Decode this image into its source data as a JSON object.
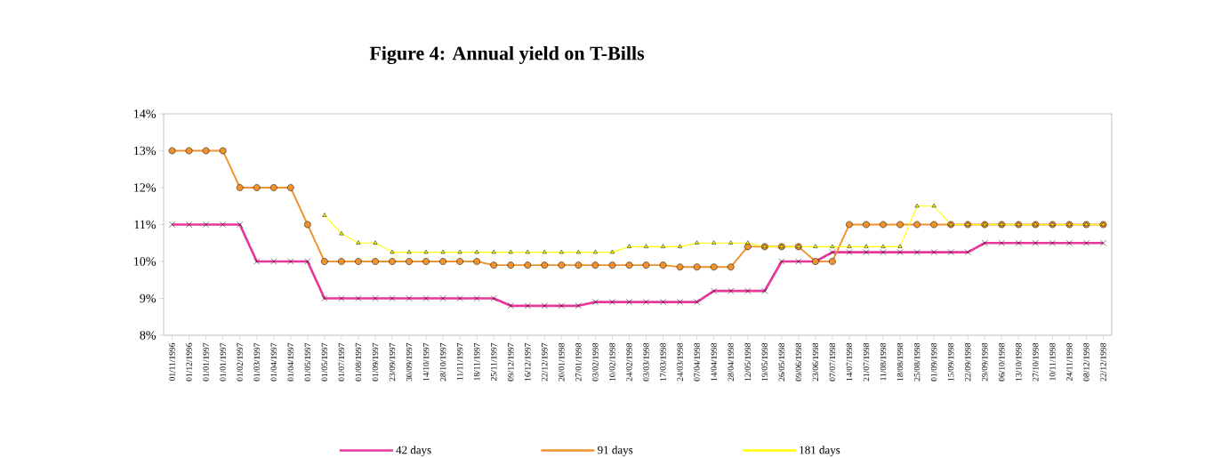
{
  "chart_data": {
    "type": "line",
    "title": "Figure 4: Annual yield on T-Bills",
    "categories": [
      "01/11/1996",
      "01/12/1996",
      "01/01/1997",
      "01/01/1997",
      "01/02/1997",
      "01/03/1997",
      "01/04/1997",
      "01/04/1997",
      "01/05/1997",
      "01/05/1997",
      "01/07/1997",
      "01/08/1997",
      "01/09/1997",
      "23/09/1997",
      "30/09/1997",
      "14/10/1997",
      "28/10/1997",
      "11/11/1997",
      "18/11/1997",
      "25/11/1997",
      "09/12/1997",
      "16/12/1997",
      "22/12/1997",
      "20/01/1998",
      "27/01/1998",
      "03/02/1998",
      "10/02/1998",
      "24/02/1998",
      "03/03/1998",
      "17/03/1998",
      "24/03/1998",
      "07/04/1998",
      "14/04/1998",
      "28/04/1998",
      "12/05/1998",
      "19/05/1998",
      "26/05/1998",
      "09/06/1998",
      "23/06/1998",
      "07/07/1998",
      "14/07/1998",
      "21/07/1998",
      "11/08/1998",
      "18/08/1998",
      "25/08/1998",
      "01/09/1998",
      "15/09/1998",
      "22/09/1998",
      "29/09/1998",
      "06/10/1998",
      "13/10/1998",
      "27/10/1998",
      "10/11/1998",
      "24/11/1998",
      "08/12/1998",
      "22/12/1998"
    ],
    "series": [
      {
        "name": "42 days",
        "color": "#e8369a",
        "marker": "cross",
        "values": [
          11,
          11,
          11,
          11,
          11,
          10,
          10,
          10,
          10,
          9,
          9,
          9,
          9,
          9,
          9,
          9,
          9,
          9,
          9,
          9,
          8.8,
          8.8,
          8.8,
          8.8,
          8.8,
          8.9,
          8.9,
          8.9,
          8.9,
          8.9,
          8.9,
          8.9,
          9.2,
          9.2,
          9.2,
          9.2,
          10,
          10,
          10,
          10.25,
          10.25,
          10.25,
          10.25,
          10.25,
          10.25,
          10.25,
          10.25,
          10.25,
          10.5,
          10.5,
          10.5,
          10.5,
          10.5,
          10.5,
          10.5,
          10.5
        ]
      },
      {
        "name": "91 days",
        "color": "#f0922e",
        "marker": "circle",
        "values": [
          13,
          13,
          13,
          13,
          12,
          12,
          12,
          12,
          11,
          10,
          10,
          10,
          10,
          10,
          10,
          10,
          10,
          10,
          10,
          9.9,
          9.9,
          9.9,
          9.9,
          9.9,
          9.9,
          9.9,
          9.9,
          9.9,
          9.9,
          9.9,
          9.85,
          9.85,
          9.85,
          9.85,
          10.4,
          10.4,
          10.4,
          10.4,
          10,
          10,
          11,
          11,
          11,
          11,
          11,
          11,
          11,
          11,
          11,
          11,
          11,
          11,
          11,
          11,
          11,
          11
        ]
      },
      {
        "name": "181 days",
        "color": "#ffff00",
        "marker": "triangle",
        "values": [
          null,
          null,
          null,
          null,
          null,
          null,
          null,
          null,
          null,
          11.25,
          10.75,
          10.5,
          10.5,
          10.25,
          10.25,
          10.25,
          10.25,
          10.25,
          10.25,
          10.25,
          10.25,
          10.25,
          10.25,
          10.25,
          10.25,
          10.25,
          10.25,
          10.4,
          10.4,
          10.4,
          10.4,
          10.5,
          10.5,
          10.5,
          10.5,
          10.4,
          10.4,
          10.4,
          10.4,
          10.4,
          10.4,
          10.4,
          10.4,
          10.4,
          11.5,
          11.5,
          11,
          11,
          11,
          11,
          11,
          11,
          11,
          11,
          11,
          11
        ]
      }
    ],
    "ylim": [
      8,
      14
    ],
    "yticks": [
      {
        "value": 8,
        "label": "8%"
      },
      {
        "value": 9,
        "label": "9%"
      },
      {
        "value": 10,
        "label": "10%"
      },
      {
        "value": 11,
        "label": "11%"
      },
      {
        "value": 12,
        "label": "12%"
      },
      {
        "value": 13,
        "label": "13%"
      },
      {
        "value": 14,
        "label": "14%"
      }
    ],
    "grid": false,
    "legend": "bottom"
  }
}
